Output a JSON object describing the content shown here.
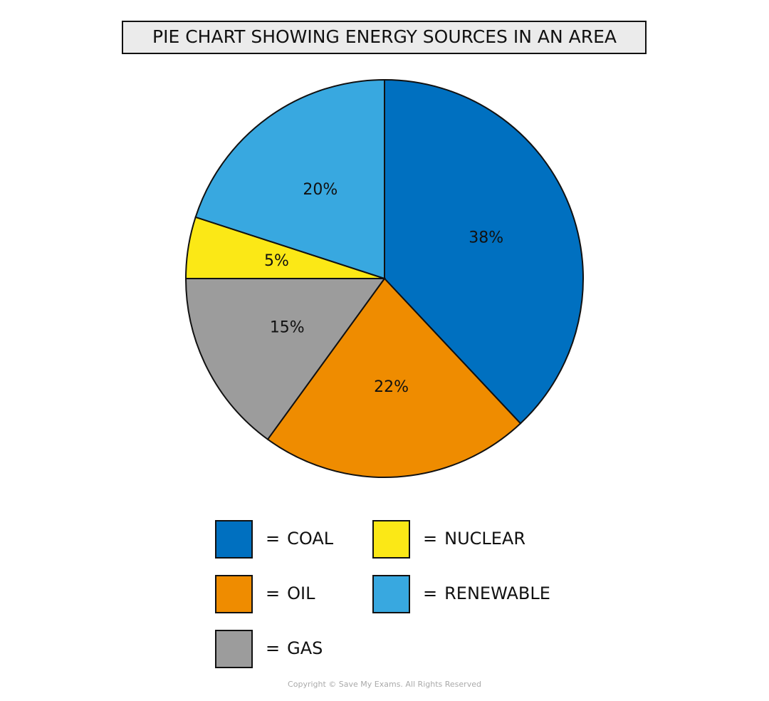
{
  "chart_data": {
    "type": "pie",
    "title": "PIE CHART SHOWING ENERGY SOURCES IN AN AREA",
    "categories": [
      "COAL",
      "OIL",
      "GAS",
      "NUCLEAR",
      "RENEWABLE"
    ],
    "values": [
      38,
      22,
      15,
      5,
      20
    ],
    "value_labels": [
      "38%",
      "22%",
      "15%",
      "5%",
      "20%"
    ],
    "colors": [
      "#0070c0",
      "#ef8c00",
      "#9c9c9c",
      "#fbe816",
      "#38a8e0"
    ],
    "legend_prefix": "=",
    "footer": "Copyright © Save My Exams. All Rights Reserved"
  }
}
